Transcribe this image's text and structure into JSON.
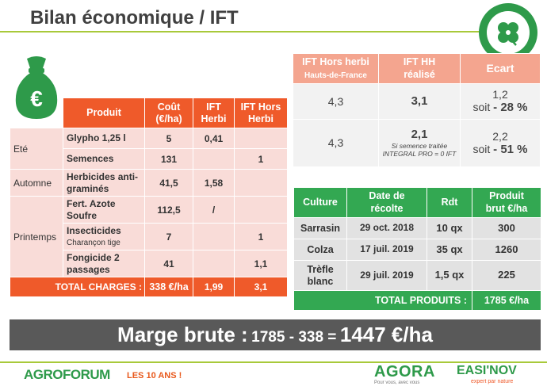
{
  "title": "Bilan économique / IFT",
  "charges_table": {
    "headers": [
      "Produit",
      "Coût\n(€/ha)",
      "IFT\nHerbi",
      "IFT Hors\nHerbi"
    ],
    "seasons": [
      "Eté",
      "Automne",
      "Printemps"
    ],
    "rows": [
      {
        "produit": "Glypho 1,25 l",
        "cout": "5",
        "ift_herbi": "0,41",
        "ift_hors": ""
      },
      {
        "produit": "Semences",
        "cout": "131",
        "ift_herbi": "",
        "ift_hors": "1"
      },
      {
        "produit": "Herbicides anti-graminés",
        "cout": "41,5",
        "ift_herbi": "1,58",
        "ift_hors": ""
      },
      {
        "produit": "Fert. Azote Soufre",
        "cout": "112,5",
        "ift_herbi": "/",
        "ift_hors": ""
      },
      {
        "produit": "Insecticides",
        "produit_sub": "Charançon tige",
        "cout": "7",
        "ift_herbi": "",
        "ift_hors": "1"
      },
      {
        "produit": "Fongicide 2 passages",
        "cout": "41",
        "ift_herbi": "",
        "ift_hors": "1,1"
      }
    ],
    "total": {
      "label": "TOTAL CHARGES :",
      "cout": "338 €/ha",
      "ift_herbi": "1,99",
      "ift_hors": "3,1"
    }
  },
  "ift_table": {
    "headers": {
      "col1": "IFT Hors herbi",
      "col1_sub": "Hauts-de-France",
      "col2": "IFT HH",
      "col2_sub": "réalisé",
      "col3": "Ecart"
    },
    "rows": [
      {
        "ref": "4,3",
        "realise": "3,1",
        "note": "",
        "ecart": "1,2",
        "soit": "soit",
        "pct": "- 28 %"
      },
      {
        "ref": "4,3",
        "realise": "2,1",
        "note": "Si semence traitée INTEGRAL PRO = 0 IFT",
        "ecart": "2,2",
        "soit": "soit",
        "pct": "- 51 %"
      }
    ]
  },
  "produits_table": {
    "headers": [
      "Culture",
      "Date de\nrécolte",
      "Rdt",
      "Produit\nbrut €/ha"
    ],
    "rows": [
      {
        "culture": "Sarrasin",
        "date": "29 oct. 2018",
        "rdt": "10 qx",
        "produit": "300"
      },
      {
        "culture": "Colza",
        "date": "17 juil. 2019",
        "rdt": "35 qx",
        "produit": "1260"
      },
      {
        "culture": "Trèfle blanc",
        "date": "29 juil. 2019",
        "rdt": "1,5 qx",
        "produit": "225"
      }
    ],
    "total": {
      "label": "TOTAL PRODUITS :",
      "value": "1785 €/ha"
    }
  },
  "marge": {
    "label": "Marge brute :",
    "calc": "1785 - 338 =",
    "result": "1447 €/ha"
  },
  "footer": {
    "agroforum": "AGROFORUM",
    "les10": "LES 10 ANS !",
    "agora": "AGORA",
    "agora_tag": "Pour vous, avec vous",
    "easinov": "EASI'NOV",
    "easinov_tag": "expert par nature"
  },
  "icons": [
    "money-bag-icon",
    "clover-icon"
  ],
  "colors": {
    "orange": "#ef5a2a",
    "salmon": "#f4a58f",
    "green": "#33a852",
    "lime": "#a8c93a",
    "grey": "#595959"
  }
}
